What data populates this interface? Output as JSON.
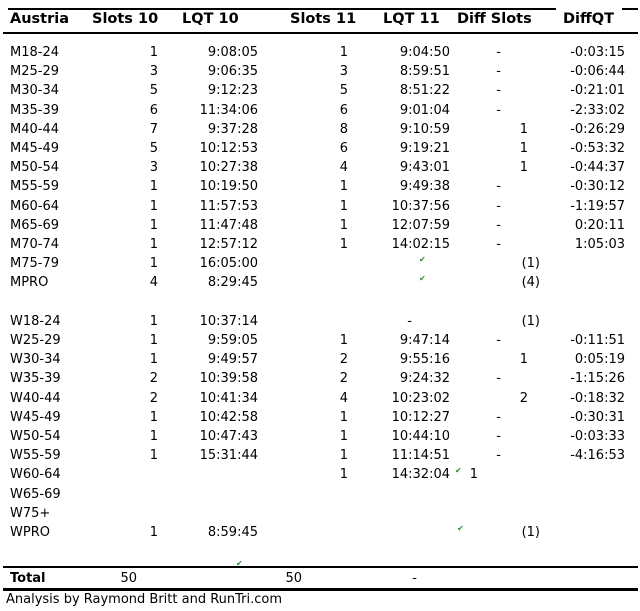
{
  "chart_data": {
    "type": "table",
    "title": "Austria",
    "columns": [
      "Austria",
      "Slots 10",
      "LQT 10",
      "Slots 11",
      "LQT 11",
      "Diff Slots",
      "DiffQT"
    ],
    "rows": [
      {
        "cells": [
          "M18-24",
          "1",
          "9:08:05",
          "1",
          "9:04:50",
          "-",
          "-0:03:15"
        ]
      },
      {
        "cells": [
          "M25-29",
          "3",
          "9:06:35",
          "3",
          "8:59:51",
          "-",
          "-0:06:44"
        ]
      },
      {
        "cells": [
          "M30-34",
          "5",
          "9:12:23",
          "5",
          "8:51:22",
          "-",
          "-0:21:01"
        ]
      },
      {
        "cells": [
          "M35-39",
          "6",
          "11:34:06",
          "6",
          "9:01:04",
          "-",
          "-2:33:02"
        ]
      },
      {
        "cells": [
          "M40-44",
          "7",
          "9:37:28",
          "8",
          "9:10:59",
          "1",
          "-0:26:29"
        ]
      },
      {
        "cells": [
          "M45-49",
          "5",
          "10:12:53",
          "6",
          "9:19:21",
          "1",
          "-0:53:32"
        ]
      },
      {
        "cells": [
          "M50-54",
          "3",
          "10:27:38",
          "4",
          "9:43:01",
          "1",
          "-0:44:37"
        ]
      },
      {
        "cells": [
          "M55-59",
          "1",
          "10:19:50",
          "1",
          "9:49:38",
          "-",
          "-0:30:12"
        ]
      },
      {
        "cells": [
          "M60-64",
          "1",
          "11:57:53",
          "1",
          "10:37:56",
          "-",
          "-1:19:57"
        ]
      },
      {
        "cells": [
          "M65-69",
          "1",
          "11:47:48",
          "1",
          "12:07:59",
          "-",
          "0:20:11"
        ]
      },
      {
        "cells": [
          "M70-74",
          "1",
          "12:57:12",
          "1",
          "14:02:15",
          "-",
          "1:05:03"
        ]
      },
      {
        "cells": [
          "M75-79",
          "1",
          "16:05:00",
          "",
          "",
          "(1)",
          ""
        ],
        "tick": true
      },
      {
        "cells": [
          "MPRO",
          "4",
          "8:29:45",
          "",
          "",
          "(4)",
          ""
        ],
        "tick": true
      },
      {
        "cells": [
          "",
          "",
          "",
          "",
          "",
          "",
          ""
        ]
      },
      {
        "cells": [
          "W18-24",
          "1",
          "10:37:14",
          "-",
          "",
          "(1)",
          ""
        ]
      },
      {
        "cells": [
          "W25-29",
          "1",
          "9:59:05",
          "1",
          "9:47:14",
          "-",
          "-0:11:51"
        ]
      },
      {
        "cells": [
          "W30-34",
          "1",
          "9:49:57",
          "2",
          "9:55:16",
          "1",
          "0:05:19"
        ]
      },
      {
        "cells": [
          "W35-39",
          "2",
          "10:39:58",
          "2",
          "9:24:32",
          "-",
          "-1:15:26"
        ]
      },
      {
        "cells": [
          "W40-44",
          "2",
          "10:41:34",
          "4",
          "10:23:02",
          "2",
          "-0:18:32"
        ]
      },
      {
        "cells": [
          "W45-49",
          "1",
          "10:42:58",
          "1",
          "10:12:27",
          "-",
          "-0:30:31"
        ]
      },
      {
        "cells": [
          "W50-54",
          "1",
          "10:47:43",
          "1",
          "10:44:10",
          "-",
          "-0:03:33"
        ]
      },
      {
        "cells": [
          "W55-59",
          "1",
          "15:31:44",
          "1",
          "11:14:51",
          "-",
          "-4:16:53"
        ]
      },
      {
        "cells": [
          "W60-64",
          "",
          "",
          "1",
          "14:32:04",
          "1",
          ""
        ],
        "tick": true
      },
      {
        "cells": [
          "W65-69",
          "",
          "",
          "",
          "",
          "",
          ""
        ]
      },
      {
        "cells": [
          "W75+",
          "",
          "",
          "",
          "",
          "",
          ""
        ]
      },
      {
        "cells": [
          "WPRO",
          "1",
          "8:59:45",
          "",
          "",
          "(1)",
          ""
        ],
        "tick": true
      },
      {
        "cells": [
          "",
          "",
          "",
          "",
          "",
          "",
          ""
        ]
      }
    ],
    "total_row": {
      "label": "Total",
      "slots10": "50",
      "slots11": "50",
      "diff_slots": "-"
    },
    "footnote": "Analysis by Raymond Britt and RunTri.com"
  },
  "icons": {
    "green_tick": "✔"
  },
  "colors": {
    "text": "#000000",
    "border": "#000000",
    "tick_green": "#2e8b2e",
    "background": "#ffffff"
  }
}
